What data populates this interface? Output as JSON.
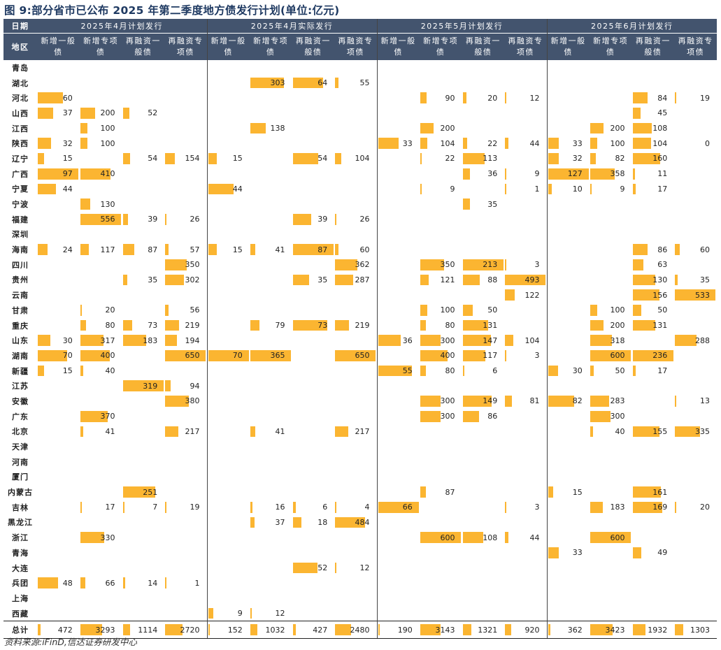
{
  "title": "图 9:部分省市已公布 2025 年第二季度地方债发行计划(单位:亿元)",
  "source": "资料来源:iFinD,信达证券研发中心",
  "header": {
    "date_label": "日期",
    "region_label": "地区",
    "groups": [
      "2025年4月计划发行",
      "2025年4月实际发行",
      "2025年5月计划发行",
      "2025年6月计划发行"
    ],
    "columns": [
      "新增一般债",
      "新增专项债",
      "再融资一般债",
      "再融资专项债"
    ]
  },
  "colors": {
    "header_bg": "#43546e",
    "bar": "#fbb531"
  },
  "rows": [
    {
      "region": "青岛",
      "values": [
        null,
        null,
        null,
        null,
        null,
        null,
        null,
        null,
        null,
        null,
        null,
        null,
        null,
        null,
        null,
        null
      ]
    },
    {
      "region": "湖北",
      "values": [
        null,
        null,
        null,
        null,
        null,
        303,
        64,
        55,
        null,
        null,
        null,
        null,
        null,
        null,
        null,
        null
      ]
    },
    {
      "region": "河北",
      "values": [
        60,
        null,
        null,
        null,
        null,
        null,
        null,
        null,
        null,
        90,
        20,
        12,
        null,
        null,
        84,
        19
      ]
    },
    {
      "region": "山西",
      "values": [
        37,
        200,
        52,
        null,
        null,
        null,
        null,
        null,
        null,
        null,
        null,
        null,
        null,
        null,
        45,
        null
      ]
    },
    {
      "region": "江西",
      "values": [
        null,
        100,
        null,
        null,
        null,
        138,
        null,
        null,
        null,
        200,
        null,
        null,
        null,
        200,
        108,
        null
      ]
    },
    {
      "region": "陕西",
      "values": [
        32,
        100,
        null,
        null,
        null,
        null,
        null,
        null,
        33,
        104,
        22,
        44,
        33,
        100,
        104,
        0
      ]
    },
    {
      "region": "辽宁",
      "values": [
        15,
        null,
        54,
        154,
        15,
        null,
        54,
        104,
        null,
        22,
        113,
        null,
        32,
        82,
        160,
        null
      ]
    },
    {
      "region": "广西",
      "values": [
        97,
        410,
        null,
        null,
        null,
        null,
        null,
        null,
        null,
        null,
        36,
        9,
        127,
        358,
        11,
        null
      ]
    },
    {
      "region": "宁夏",
      "values": [
        44,
        null,
        null,
        null,
        44,
        null,
        null,
        null,
        null,
        9,
        null,
        1,
        10,
        9,
        17,
        null
      ]
    },
    {
      "region": "宁波",
      "values": [
        null,
        130,
        null,
        null,
        null,
        null,
        null,
        null,
        null,
        null,
        35,
        null,
        null,
        null,
        null,
        null
      ]
    },
    {
      "region": "福建",
      "values": [
        null,
        556,
        39,
        26,
        null,
        null,
        39,
        26,
        null,
        null,
        null,
        null,
        null,
        null,
        null,
        null
      ]
    },
    {
      "region": "深圳",
      "values": [
        null,
        null,
        null,
        null,
        null,
        null,
        null,
        null,
        null,
        null,
        null,
        null,
        null,
        null,
        null,
        null
      ]
    },
    {
      "region": "海南",
      "values": [
        24,
        117,
        87,
        57,
        15,
        41,
        87,
        60,
        null,
        null,
        null,
        null,
        null,
        null,
        86,
        60
      ]
    },
    {
      "region": "四川",
      "values": [
        null,
        null,
        null,
        350,
        null,
        null,
        null,
        362,
        null,
        350,
        213,
        3,
        null,
        null,
        63,
        null
      ]
    },
    {
      "region": "贵州",
      "values": [
        null,
        null,
        35,
        302,
        null,
        null,
        35,
        287,
        null,
        121,
        88,
        493,
        null,
        null,
        130,
        35
      ]
    },
    {
      "region": "云南",
      "values": [
        null,
        null,
        null,
        null,
        null,
        null,
        null,
        null,
        null,
        null,
        null,
        122,
        null,
        null,
        156,
        533
      ]
    },
    {
      "region": "甘肃",
      "values": [
        null,
        20,
        null,
        56,
        null,
        null,
        null,
        null,
        null,
        100,
        50,
        null,
        null,
        100,
        50,
        null
      ]
    },
    {
      "region": "重庆",
      "values": [
        null,
        80,
        73,
        219,
        null,
        79,
        73,
        219,
        null,
        80,
        131,
        null,
        null,
        200,
        131,
        null
      ]
    },
    {
      "region": "山东",
      "values": [
        30,
        317,
        183,
        194,
        null,
        null,
        null,
        null,
        36,
        300,
        147,
        104,
        null,
        318,
        null,
        288
      ]
    },
    {
      "region": "湖南",
      "values": [
        70,
        400,
        null,
        650,
        70,
        365,
        null,
        650,
        null,
        400,
        117,
        3,
        null,
        600,
        236,
        null
      ]
    },
    {
      "region": "新疆",
      "values": [
        15,
        40,
        null,
        null,
        null,
        null,
        null,
        null,
        55,
        80,
        6,
        null,
        30,
        50,
        17,
        null
      ]
    },
    {
      "region": "江苏",
      "values": [
        null,
        null,
        319,
        94,
        null,
        null,
        null,
        null,
        null,
        null,
        null,
        null,
        null,
        null,
        null,
        null
      ]
    },
    {
      "region": "安徽",
      "values": [
        null,
        null,
        null,
        380,
        null,
        null,
        null,
        null,
        null,
        300,
        149,
        81,
        82,
        283,
        null,
        13
      ]
    },
    {
      "region": "广东",
      "values": [
        null,
        370,
        null,
        null,
        null,
        null,
        null,
        null,
        null,
        300,
        86,
        null,
        null,
        300,
        null,
        null
      ]
    },
    {
      "region": "北京",
      "values": [
        null,
        41,
        null,
        217,
        null,
        41,
        null,
        217,
        null,
        null,
        null,
        null,
        null,
        40,
        155,
        335
      ]
    },
    {
      "region": "天津",
      "values": [
        null,
        null,
        null,
        null,
        null,
        null,
        null,
        null,
        null,
        null,
        null,
        null,
        null,
        null,
        null,
        null
      ]
    },
    {
      "region": "河南",
      "values": [
        null,
        null,
        null,
        null,
        null,
        null,
        null,
        null,
        null,
        null,
        null,
        null,
        null,
        null,
        null,
        null
      ]
    },
    {
      "region": "厦门",
      "values": [
        null,
        null,
        null,
        null,
        null,
        null,
        null,
        null,
        null,
        null,
        null,
        null,
        null,
        null,
        null,
        null
      ]
    },
    {
      "region": "内蒙古",
      "values": [
        null,
        null,
        251,
        null,
        null,
        null,
        null,
        null,
        null,
        87,
        null,
        null,
        15,
        null,
        161,
        null
      ]
    },
    {
      "region": "吉林",
      "values": [
        null,
        17,
        7,
        19,
        null,
        16,
        6,
        4,
        66,
        null,
        null,
        3,
        null,
        183,
        169,
        20
      ]
    },
    {
      "region": "黑龙江",
      "values": [
        null,
        null,
        null,
        null,
        null,
        37,
        18,
        484,
        null,
        null,
        null,
        null,
        null,
        null,
        null,
        null
      ]
    },
    {
      "region": "浙江",
      "values": [
        null,
        330,
        null,
        null,
        null,
        null,
        null,
        null,
        null,
        600,
        108,
        44,
        null,
        600,
        null,
        null
      ]
    },
    {
      "region": "青海",
      "values": [
        null,
        null,
        null,
        null,
        null,
        null,
        null,
        null,
        null,
        null,
        null,
        null,
        33,
        null,
        49,
        null
      ]
    },
    {
      "region": "大连",
      "values": [
        null,
        null,
        null,
        null,
        null,
        null,
        52,
        12,
        null,
        null,
        null,
        null,
        null,
        null,
        null,
        null
      ]
    },
    {
      "region": "兵团",
      "values": [
        48,
        66,
        14,
        1,
        null,
        null,
        null,
        null,
        null,
        null,
        null,
        null,
        null,
        null,
        null,
        null
      ]
    },
    {
      "region": "上海",
      "values": [
        null,
        null,
        null,
        null,
        null,
        null,
        null,
        null,
        null,
        null,
        null,
        null,
        null,
        null,
        null,
        null
      ]
    },
    {
      "region": "西藏",
      "values": [
        null,
        null,
        null,
        null,
        9,
        12,
        null,
        null,
        null,
        null,
        null,
        null,
        null,
        null,
        null,
        null
      ]
    }
  ],
  "total": {
    "region": "总计",
    "values": [
      472,
      3293,
      1114,
      2720,
      152,
      1032,
      427,
      2480,
      190,
      3143,
      1321,
      920,
      362,
      3423,
      1932,
      1303
    ]
  }
}
